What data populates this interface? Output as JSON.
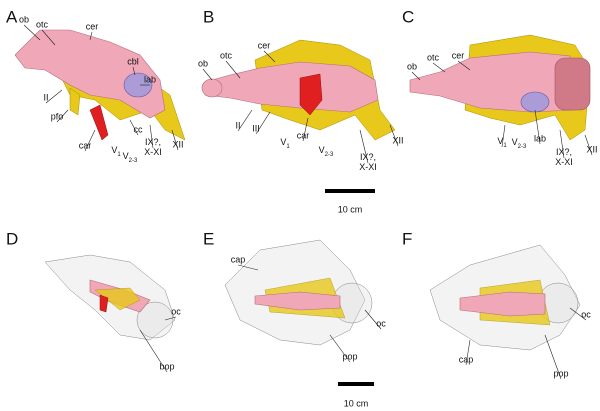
{
  "panels": [
    {
      "letter": "A",
      "labels": [
        "ob",
        "otc",
        "cer",
        "cbl",
        "lab",
        "II",
        "pfo",
        "car",
        {
          "text": "V",
          "sub": "1"
        },
        {
          "text": "V",
          "sub": "2-3"
        },
        "cc",
        {
          "lines": [
            "IX?,",
            "X-XI"
          ]
        },
        "XII"
      ]
    },
    {
      "letter": "B",
      "labels": [
        "ob",
        "otc",
        "cer",
        "II",
        "III",
        {
          "text": "V",
          "sub": "1"
        },
        "car",
        {
          "text": "V",
          "sub": "2-3"
        },
        {
          "lines": [
            "IX?,",
            "X-XI"
          ]
        },
        "XII"
      ]
    },
    {
      "letter": "C",
      "labels": [
        "ob",
        "otc",
        "cer",
        {
          "text": "V",
          "sub": "1"
        },
        {
          "text": "V",
          "sub": "2-3"
        },
        "lab",
        {
          "lines": [
            "IX?,",
            "X-XI"
          ]
        },
        "XII"
      ]
    },
    {
      "letter": "D",
      "labels": [
        "bop",
        "oc"
      ]
    },
    {
      "letter": "E",
      "labels": [
        "cap",
        "oc",
        "pop"
      ]
    },
    {
      "letter": "F",
      "labels": [
        "cap",
        "oc",
        "pop"
      ]
    }
  ],
  "scale_bars": [
    "10 cm",
    "10 cm"
  ]
}
